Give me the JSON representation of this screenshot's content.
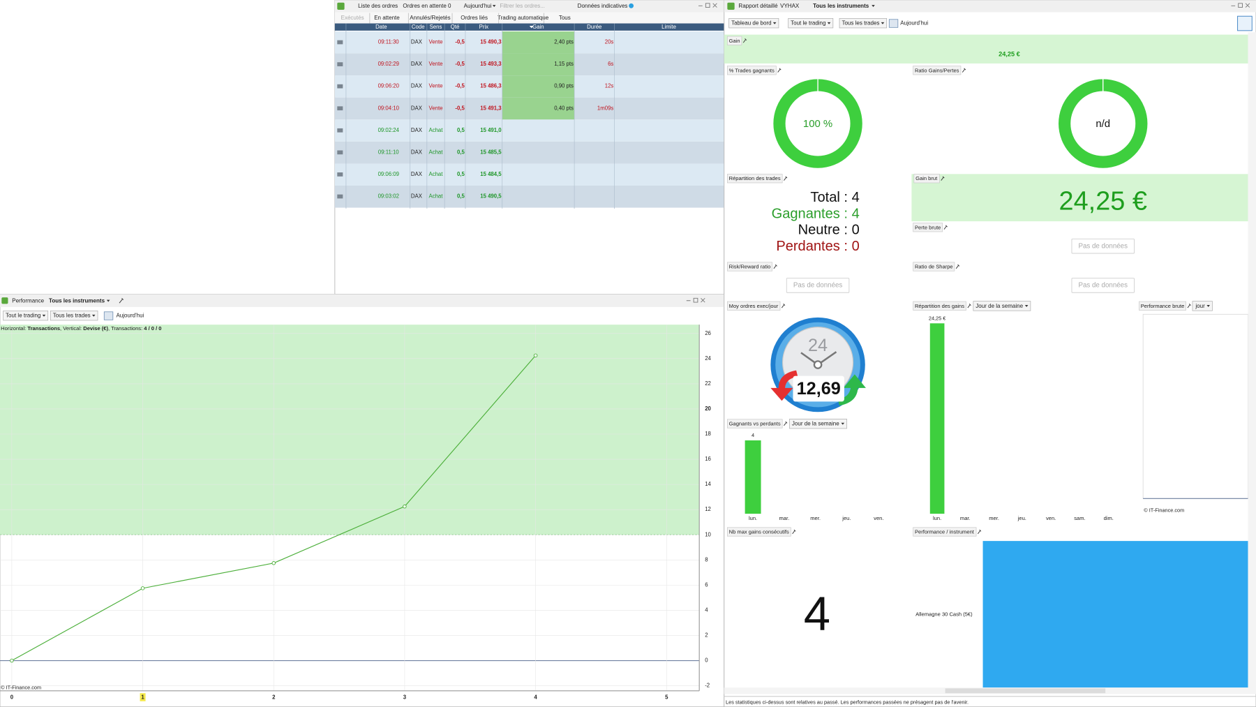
{
  "orders_panel": {
    "toolbar": [
      "Liste des ordres",
      "Ordres en attente 0",
      "Aujourd'hui",
      "Filtrer les ordres...",
      "Données indicatives"
    ],
    "tabs": [
      "Exécutés",
      "En attente",
      "Annulés/Rejetés",
      "Ordres liés",
      "Trading automatique",
      "Tous"
    ],
    "columns": [
      "Date",
      "Code",
      "Sens",
      "Qté",
      "Prix",
      "Gain",
      "Durée",
      "Limite"
    ],
    "side_colors": {
      "Vente": "#c0141e",
      "Achat": "#1e9628"
    },
    "rows": [
      {
        "date": "09:11:30",
        "code": "DAX",
        "sens": "Vente",
        "qty": "-0,5",
        "price": "15 490,3",
        "gain": "2,40 pts",
        "duration": "20s"
      },
      {
        "date": "09:02:29",
        "code": "DAX",
        "sens": "Vente",
        "qty": "-0,5",
        "price": "15 493,3",
        "gain": "1,15 pts",
        "duration": "6s"
      },
      {
        "date": "09:06:20",
        "code": "DAX",
        "sens": "Vente",
        "qty": "-0,5",
        "price": "15 486,3",
        "gain": "0,90 pts",
        "duration": "12s"
      },
      {
        "date": "09:04:10",
        "code": "DAX",
        "sens": "Vente",
        "qty": "-0,5",
        "price": "15 491,3",
        "gain": "0,40 pts",
        "duration": "1m09s"
      },
      {
        "date": "09:02:24",
        "code": "DAX",
        "sens": "Achat",
        "qty": "0,5",
        "price": "15 491,0"
      },
      {
        "date": "09:11:10",
        "code": "DAX",
        "sens": "Achat",
        "qty": "0,5",
        "price": "15 485,5"
      },
      {
        "date": "09:06:09",
        "code": "DAX",
        "sens": "Achat",
        "qty": "0,5",
        "price": "15 484,5"
      },
      {
        "date": "09:03:02",
        "code": "DAX",
        "sens": "Achat",
        "qty": "0,5",
        "price": "15 490,5"
      }
    ]
  },
  "performance_panel": {
    "title": "Performance",
    "instrument": "Tous les instruments",
    "filters": [
      "Tout le trading",
      "Tous les trades",
      "Aujourd'hui"
    ],
    "caption": [
      {
        "text": "Horizontal: "
      },
      {
        "text": "Transactions",
        "bold": true
      },
      {
        "text": ", Vertical: "
      },
      {
        "text": "Devise (€)",
        "bold": true
      },
      {
        "text": ", Transactions: "
      },
      {
        "text": "4 / 0 / 0",
        "bold": true
      }
    ],
    "copyright": "© IT-Finance.com",
    "chart": {
      "type": "line",
      "x": [
        0,
        1,
        2,
        3,
        4
      ],
      "values": [
        0,
        5.75,
        7.75,
        12.25,
        24.25
      ],
      "color": "#4caf3a",
      "xlim": [
        -0.09,
        5.25
      ],
      "ylim": [
        -2.4,
        26.7
      ],
      "xticks": [
        0,
        1,
        2,
        3,
        4,
        5
      ],
      "yticks": [
        -2,
        0,
        2,
        4,
        6,
        8,
        10,
        12,
        14,
        16,
        18,
        20,
        22,
        24,
        26
      ],
      "highlighted_xtick": 1,
      "threshold": 10,
      "grid": true
    }
  },
  "report_panel": {
    "toolbar": [
      "Rapport détaillé",
      "VYHAX",
      "Tous les instruments"
    ],
    "filters": [
      "Tableau de bord",
      "Tout le trading",
      "Tous les trades",
      "Aujourd'hui"
    ],
    "gain": {
      "label": "Gain",
      "value": "24,25 €"
    },
    "win_rate": {
      "label": "% Trades gagnants",
      "value": 100,
      "value_label": "100 %"
    },
    "ratio": {
      "label": "Ratio Gains/Pertes",
      "value": "n/d"
    },
    "distribution": {
      "label": "Répartition des trades",
      "lines": [
        "Total : 4",
        "Gagnantes : 4",
        "Neutre : 0",
        "Perdantes : 0"
      ]
    },
    "gross_gain": {
      "label": "Gain brut",
      "value": "24,25 €"
    },
    "gross_loss": {
      "label": "Perte brute",
      "value": "Pas de données"
    },
    "risk_reward": {
      "label": "Risk/Reward ratio",
      "value": "Pas de données"
    },
    "sharpe": {
      "label": "Ratio de Sharpe",
      "value": "Pas de données"
    },
    "avg_orders": {
      "label": "Moy ordres exec/jour",
      "dial": "24",
      "value": "12,69"
    },
    "gains_by_day": {
      "type": "bar",
      "label": "Répartition des gains",
      "period": "Jour de la semaine",
      "categories": [
        "lun.",
        "mar.",
        "mer.",
        "jeu.",
        "ven.",
        "sam.",
        "dim."
      ],
      "values": [
        24.25,
        null,
        null,
        null,
        null,
        null,
        null
      ],
      "value_labels": [
        "24,25 €",
        null,
        null,
        null,
        null,
        null,
        null
      ],
      "color": "#3ecf3e",
      "ylim": [
        0,
        25
      ]
    },
    "winners_losers": {
      "type": "bar",
      "label": "Gagnants vs perdants",
      "period": "Jour de la semaine",
      "categories": [
        "lun.",
        "mar.",
        "mer.",
        "jeu.",
        "ven."
      ],
      "values": [
        4,
        null,
        null,
        null,
        null
      ],
      "color": "#3ecf3e",
      "ylim": [
        0,
        4.5
      ]
    },
    "raw_performance": {
      "label": "Performance brute",
      "period": "jour",
      "copyright": "© IT-Finance.com"
    },
    "max_consecutive": {
      "label": "Nb max gains consécutifs",
      "value": "4"
    },
    "per_instrument": {
      "label": "Performance / instrument",
      "instrument": "Allemagne 30 Cash (5€)"
    },
    "footer": "Les statistiques ci-dessus sont relatives au passé. Les performances passées ne présagent pas de l'avenir."
  }
}
